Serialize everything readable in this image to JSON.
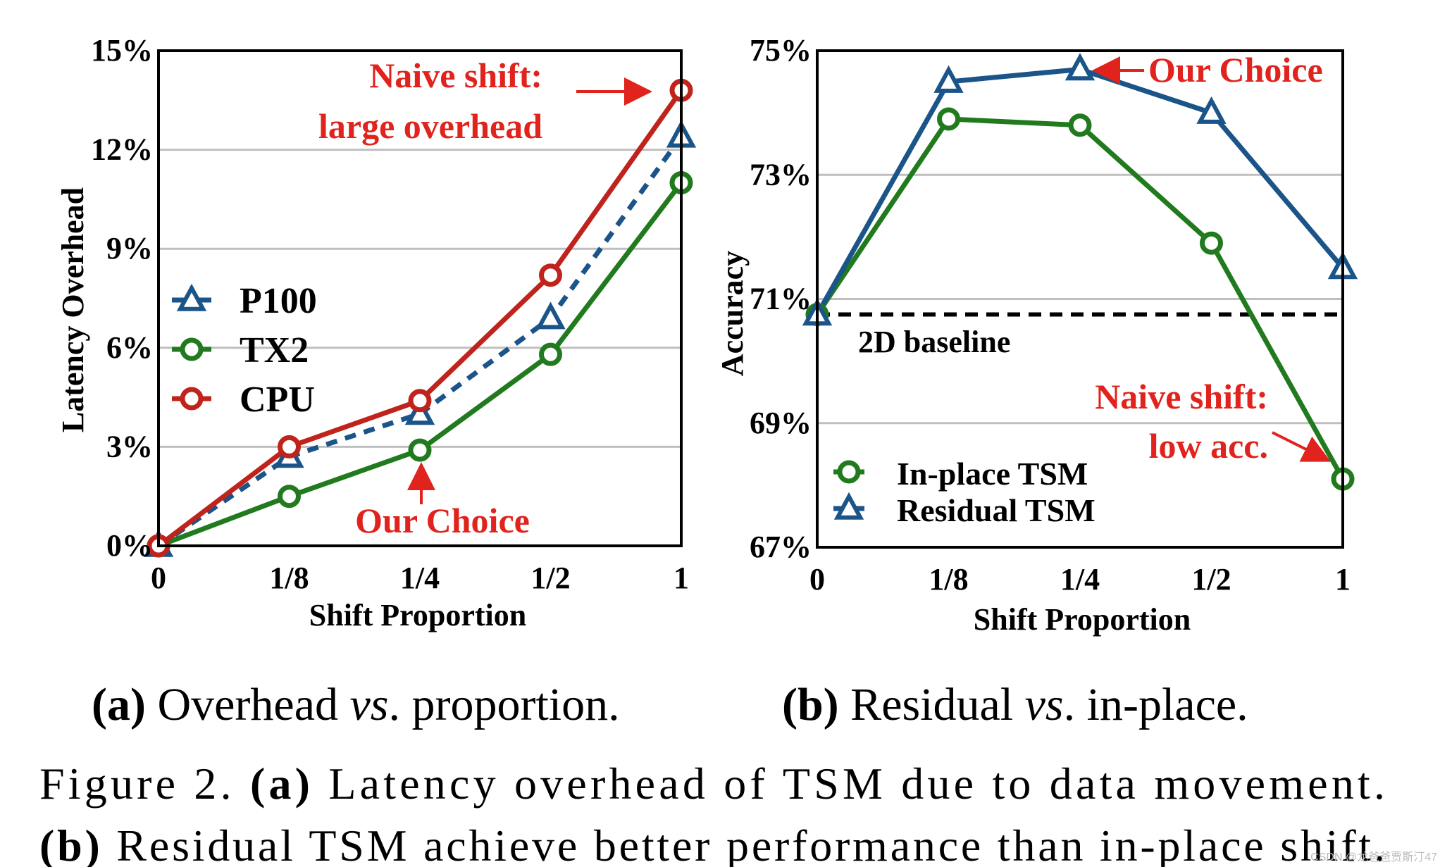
{
  "colors": {
    "blue": "#1a5488",
    "green": "#217a1e",
    "red": "#c0231c",
    "annot": "#e0231c",
    "grid": "#bfbfbf"
  },
  "chart_data": [
    {
      "type": "line",
      "xlabel": "Shift Proportion",
      "ylabel": "Latency Overhead",
      "categories": [
        "0",
        "1/8",
        "1/4",
        "1/2",
        "1"
      ],
      "yticks": [
        "0%",
        "3%",
        "6%",
        "9%",
        "12%",
        "15%"
      ],
      "ylim": [
        0,
        15
      ],
      "grid": true,
      "legend_position": "left",
      "series": [
        {
          "name": "P100",
          "values": [
            0,
            2.7,
            4.0,
            6.9,
            12.4
          ],
          "color": "#1a5488",
          "marker": "triangle",
          "dashed": true
        },
        {
          "name": "TX2",
          "values": [
            0,
            1.5,
            2.9,
            5.8,
            11.0
          ],
          "color": "#217a1e",
          "marker": "circle",
          "dashed": false
        },
        {
          "name": "CPU",
          "values": [
            0,
            3.0,
            4.4,
            8.2,
            13.8
          ],
          "color": "#c0231c",
          "marker": "circle",
          "dashed": false
        }
      ],
      "annotations": {
        "naive_line1": "Naive shift:",
        "naive_line2": "large overhead",
        "choice": "Our Choice"
      },
      "subcaption": {
        "label": "(a)",
        "before": " Overhead ",
        "vs": "vs",
        "after": ". proportion."
      }
    },
    {
      "type": "line",
      "xlabel": "Shift Proportion",
      "ylabel": "Accuracy",
      "categories": [
        "0",
        "1/8",
        "1/4",
        "1/2",
        "1"
      ],
      "yticks": [
        "67%",
        "69%",
        "71%",
        "73%",
        "75%"
      ],
      "ylim": [
        67,
        75
      ],
      "grid": true,
      "legend_position": "bottom-left",
      "baseline": {
        "label": "2D baseline",
        "value": 70.75
      },
      "series": [
        {
          "name": "In-place TSM",
          "values": [
            70.75,
            73.9,
            73.8,
            71.9,
            68.1
          ],
          "color": "#217a1e",
          "marker": "circle"
        },
        {
          "name": "Residual TSM",
          "values": [
            70.75,
            74.5,
            74.7,
            74.0,
            71.5
          ],
          "color": "#1a5488",
          "marker": "triangle"
        }
      ],
      "annotations": {
        "choice": "Our Choice",
        "naive_line1": "Naive shift:",
        "naive_line2": "low acc."
      },
      "subcaption": {
        "label": "(b)",
        "before": " Residual ",
        "vs": "vs",
        "after": ". in-place."
      }
    }
  ],
  "caption": {
    "line1_prefix": "Figure 2. ",
    "line1_bold": "(a)",
    "line1_rest": " Latency overhead of TSM due to data movement.",
    "line2_bold": "(b)",
    "line2_rest": " Residual TSM achieve better performance than in-place shift."
  },
  "watermark": "CSDN @龙爸爸贾斯汀47"
}
